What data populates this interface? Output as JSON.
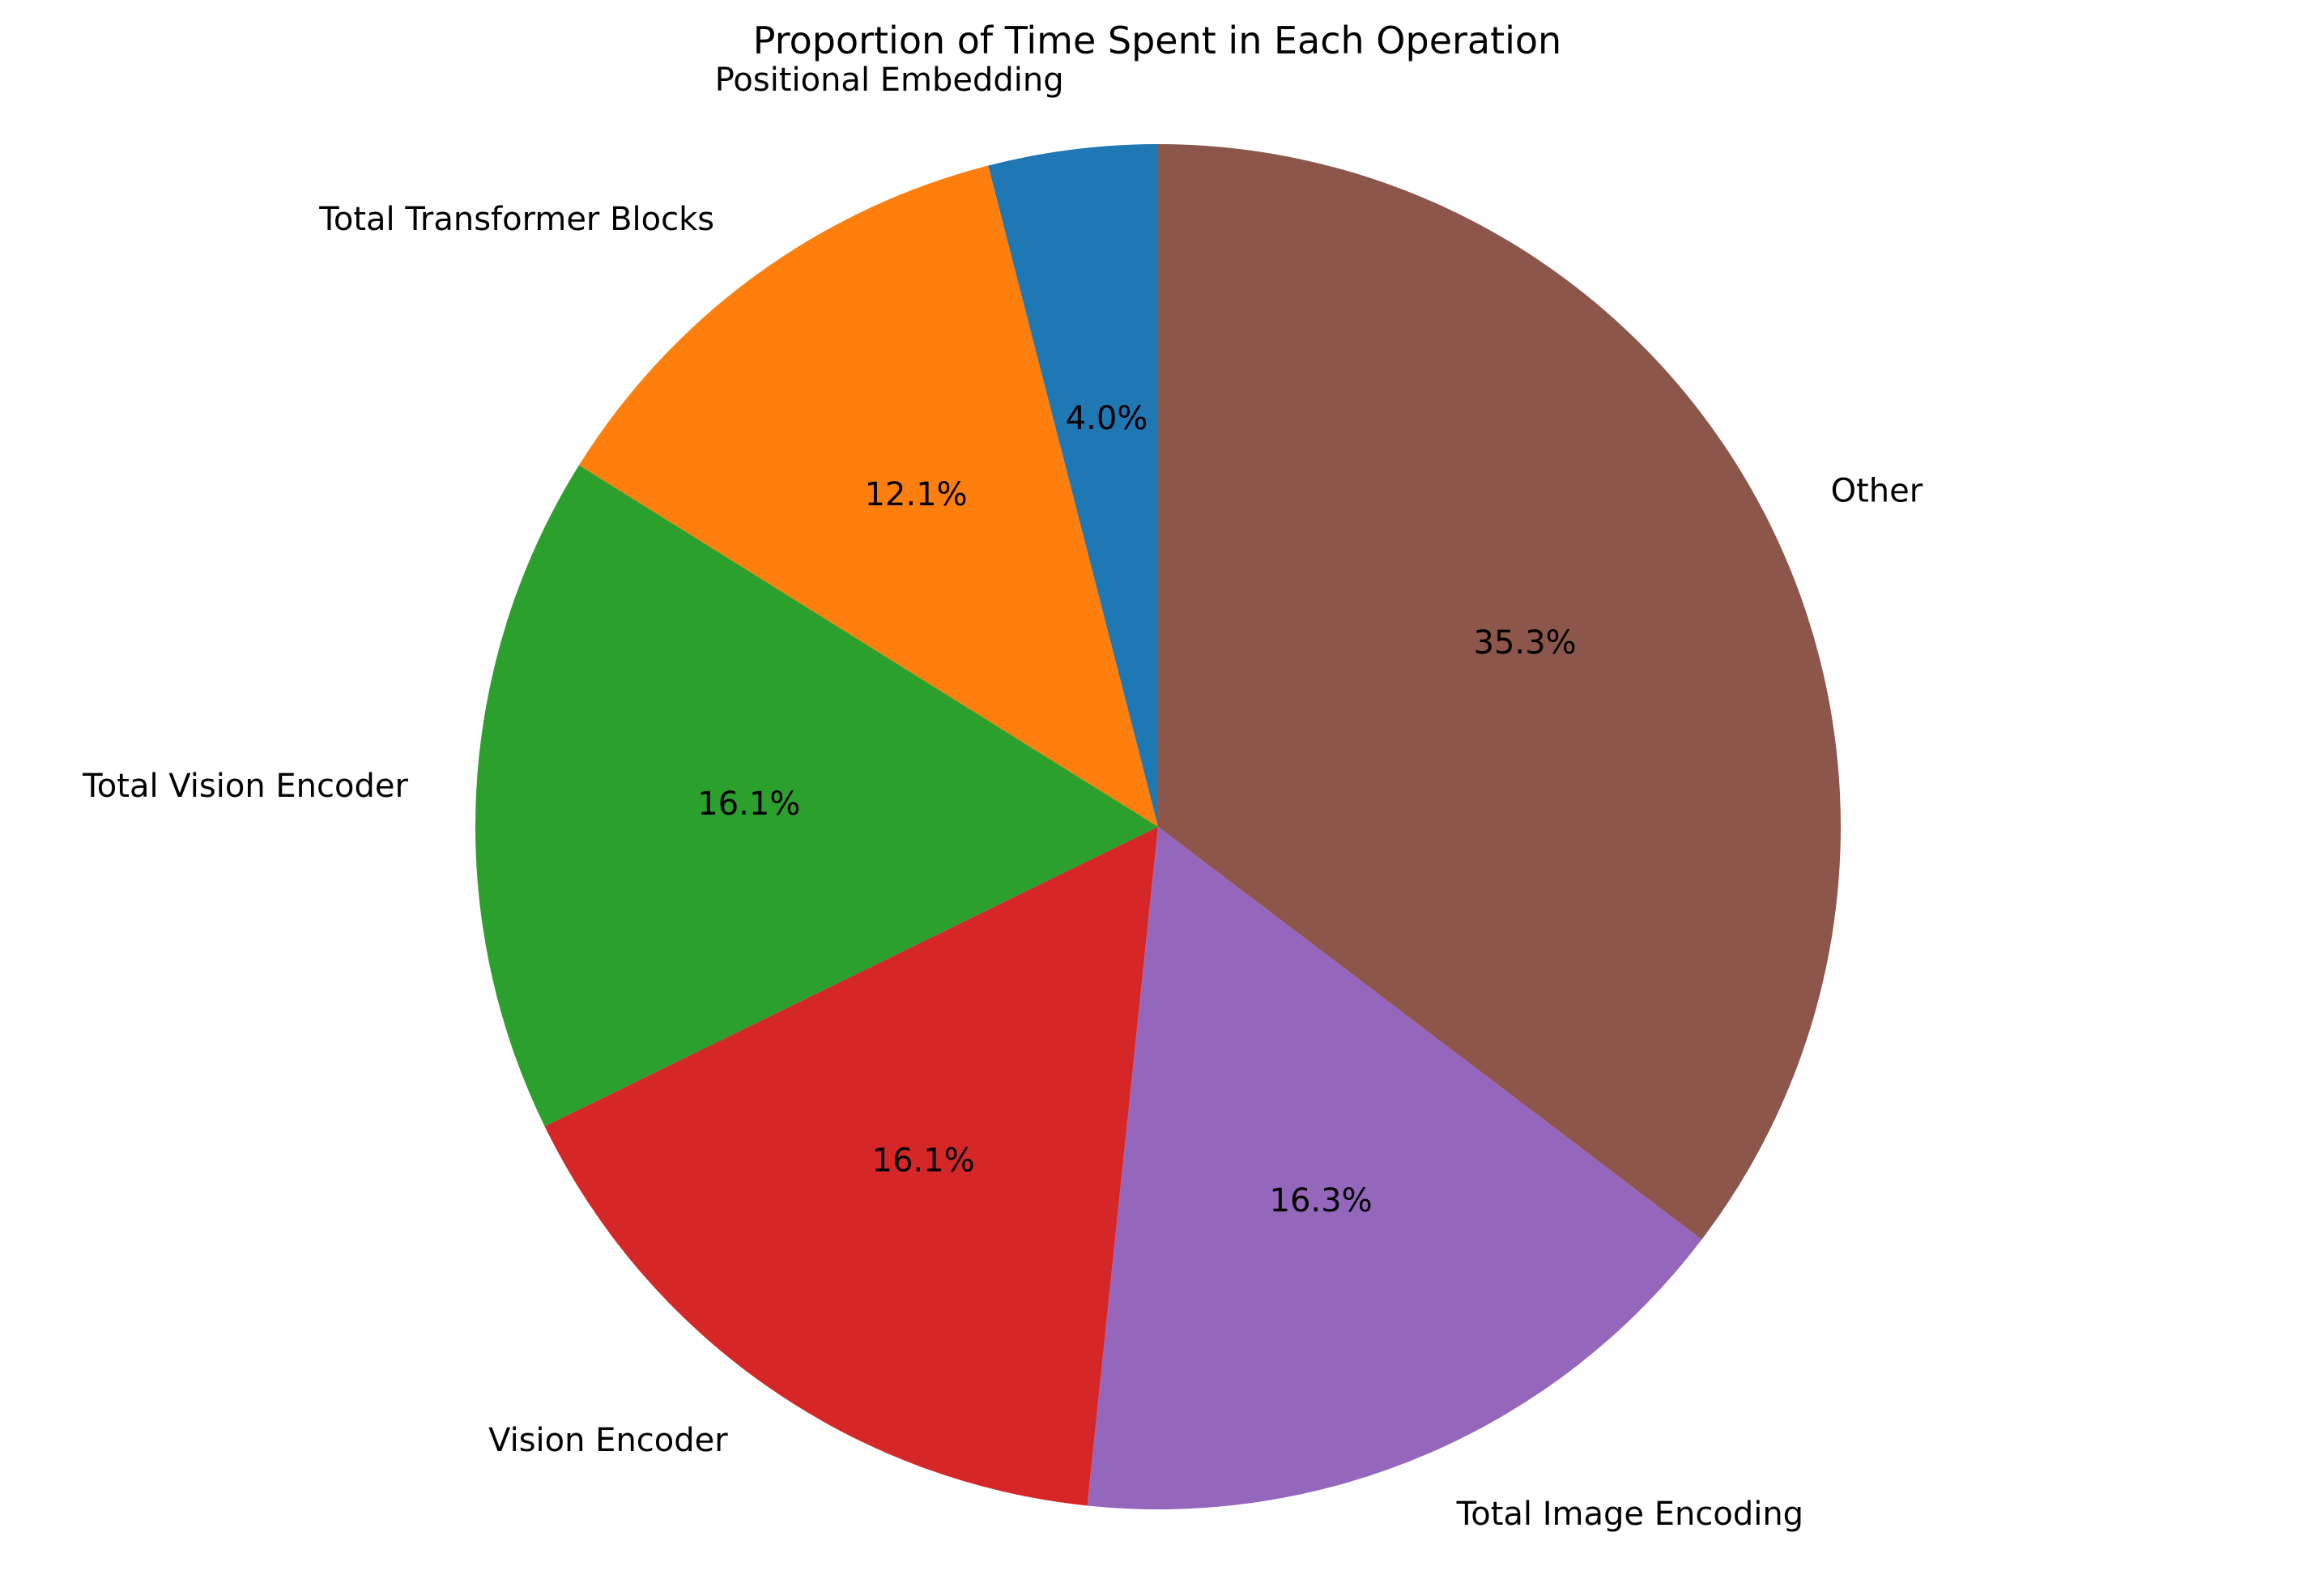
{
  "chart_data": {
    "type": "pie",
    "title": "Proportion of Time Spent in Each Operation",
    "start_angle_deg": 90,
    "direction": "counterclockwise",
    "labels": [
      "Positional Embedding",
      "Total Transformer Blocks",
      "Total Vision Encoder",
      "Vision Encoder",
      "Total Image Encoding",
      "Other"
    ],
    "values": [
      4.0,
      12.1,
      16.1,
      16.1,
      16.3,
      35.3
    ],
    "percent_labels": [
      "4.0%",
      "12.1%",
      "16.1%",
      "16.1%",
      "16.3%",
      "35.3%"
    ],
    "colors": [
      "#1f77b4",
      "#ff7f0e",
      "#2ca02c",
      "#d62728",
      "#9467bd",
      "#8c564b"
    ]
  }
}
